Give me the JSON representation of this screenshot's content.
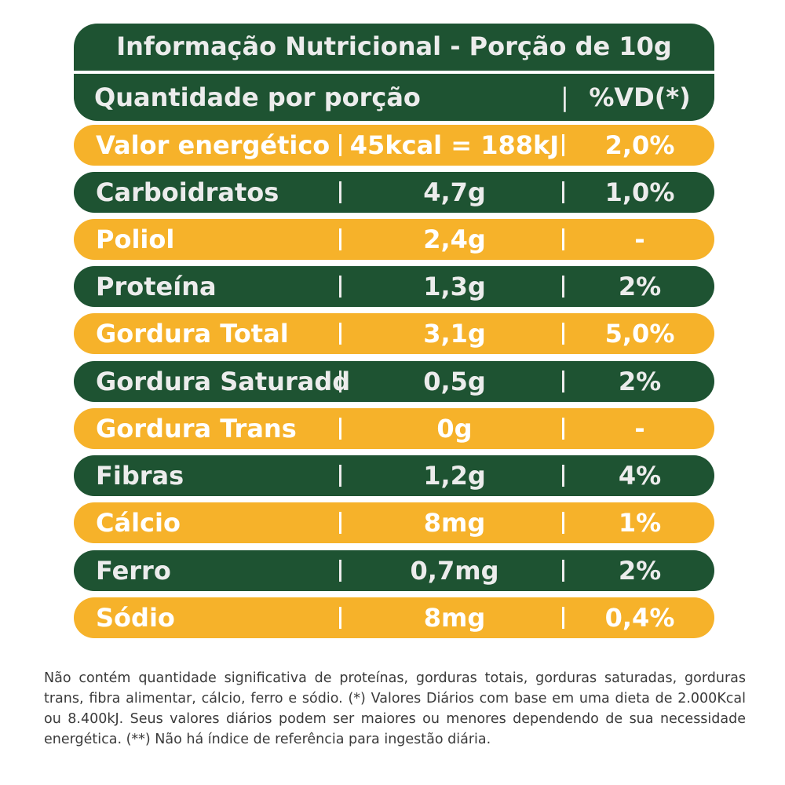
{
  "header": {
    "title": "Informação Nutricional - Porção de 10g",
    "quantity_label": "Quantidade por porção",
    "vd_label": "%VD(*)"
  },
  "rows": [
    {
      "name": "Valor energético",
      "amount": "45kcal = 188kJ",
      "vd": "2,0%",
      "color": "#f6b22a"
    },
    {
      "name": "Carboidratos",
      "amount": "4,7g",
      "vd": "1,0%",
      "color": "#1e5332"
    },
    {
      "name": "Poliol",
      "amount": "2,4g",
      "vd": "-",
      "color": "#f6b22a"
    },
    {
      "name": "Proteína",
      "amount": "1,3g",
      "vd": "2%",
      "color": "#1e5332"
    },
    {
      "name": "Gordura Total",
      "amount": "3,1g",
      "vd": "5,0%",
      "color": "#f6b22a"
    },
    {
      "name": "Gordura Saturadd",
      "amount": "0,5g",
      "vd": "2%",
      "color": "#1e5332"
    },
    {
      "name": "Gordura Trans",
      "amount": "0g",
      "vd": "-",
      "color": "#f6b22a"
    },
    {
      "name": "Fibras",
      "amount": "1,2g",
      "vd": "4%",
      "color": "#1e5332"
    },
    {
      "name": "Cálcio",
      "amount": "8mg",
      "vd": "1%",
      "color": "#f6b22a"
    },
    {
      "name": "Ferro",
      "amount": "0,7mg",
      "vd": "2%",
      "color": "#1e5332"
    },
    {
      "name": "Sódio",
      "amount": "8mg",
      "vd": "0,4%",
      "color": "#f6b22a"
    }
  ],
  "footnote": "Não contém quantidade significativa de proteínas, gorduras totais, gorduras saturadas, gorduras trans, fibra alimentar, cálcio, ferro e sódio. (*) Valores Diários com base em uma dieta de 2.000Kcal ou 8.400kJ. Seus valores diários podem ser maiores ou menores dependendo de sua necessidade energética. (**) Não há índice de referência para ingestão diária."
}
